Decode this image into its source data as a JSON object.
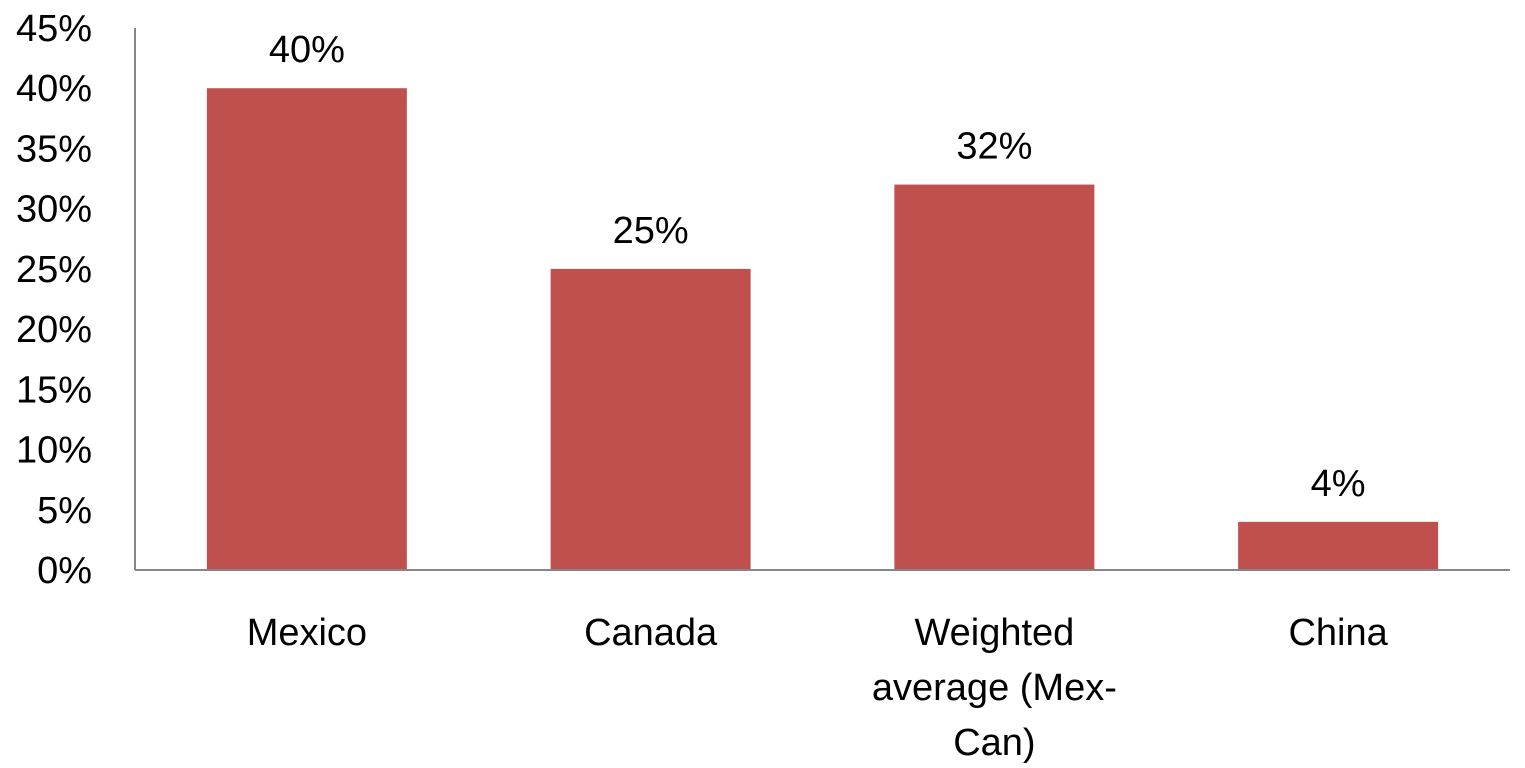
{
  "chart_data": {
    "type": "bar",
    "title": "",
    "xlabel": "",
    "ylabel": "",
    "categories": [
      [
        "Mexico"
      ],
      [
        "Canada"
      ],
      [
        "Weighted",
        "average (Mex-",
        "Can)"
      ],
      [
        "China"
      ]
    ],
    "values": [
      40,
      25,
      32,
      4
    ],
    "data_labels": [
      "40%",
      "25%",
      "32%",
      "4%"
    ],
    "ylim": [
      0,
      45
    ],
    "y_ticks": [
      0,
      5,
      10,
      15,
      20,
      25,
      30,
      35,
      40,
      45
    ],
    "y_tick_labels": [
      "0%",
      "5%",
      "10%",
      "15%",
      "20%",
      "25%",
      "30%",
      "35%",
      "40%",
      "45%"
    ],
    "grid": false,
    "legend": "none",
    "colors": {
      "bar": "#C0504D",
      "axis": "#868686",
      "text": "#000000"
    }
  }
}
